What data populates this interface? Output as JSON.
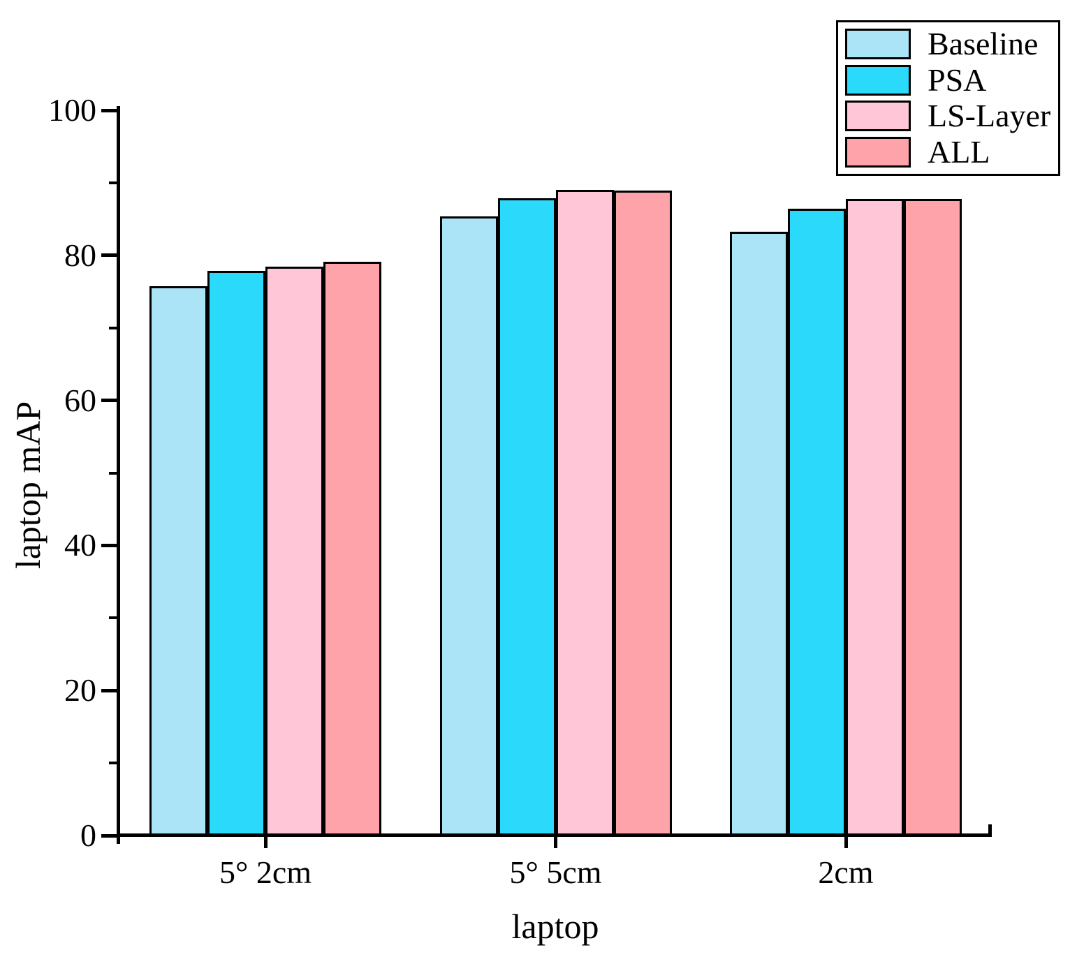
{
  "chart_data": {
    "type": "bar",
    "title": "",
    "xlabel": "laptop",
    "ylabel": "laptop mAP",
    "categories": [
      "5° 2cm",
      "5° 5cm",
      "2cm"
    ],
    "series": [
      {
        "name": "Baseline",
        "color": "#ABE3F7",
        "values": [
          75.7,
          85.4,
          83.3
        ]
      },
      {
        "name": "PSA",
        "color": "#2BDAFB",
        "values": [
          77.9,
          87.9,
          86.4
        ]
      },
      {
        "name": "LS-Layer",
        "color": "#FFC6D7",
        "values": [
          78.4,
          89.0,
          87.8
        ]
      },
      {
        "name": "ALL",
        "color": "#FFA3AB",
        "values": [
          79.1,
          88.9,
          87.8
        ]
      }
    ],
    "ylim": [
      0,
      100
    ],
    "yticks_major": [
      0,
      20,
      40,
      60,
      80,
      100
    ],
    "yticks_minor": [
      10,
      30,
      50,
      70,
      90
    ],
    "grid": false,
    "legend": {
      "position": "top-right",
      "entries": [
        "Baseline",
        "PSA",
        "LS-Layer",
        "ALL"
      ]
    },
    "bar_edge_color": "#000000",
    "axis_color": "#000000",
    "background_color": "#FFFFFF"
  }
}
